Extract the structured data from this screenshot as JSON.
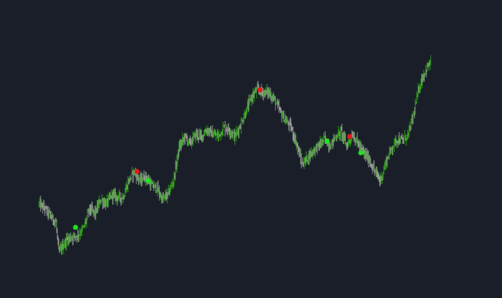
{
  "theme": {
    "background": "#1a1e29",
    "wick_color": "#9a9a9a",
    "bull_color": "#2e9e18",
    "bear_color": "#9a9a9a",
    "buy_signal_color": "#1ee81e",
    "sell_signal_color": "#e81818"
  },
  "chart_data": {
    "type": "line",
    "title": "",
    "xlabel": "",
    "ylabel": "",
    "grid": false,
    "legend": "none",
    "axes_visible": false,
    "xlim": [
      0,
      140
    ],
    "ylim": [
      0,
      100
    ],
    "series": [
      {
        "style": "price-bars",
        "x": [
          0,
          2,
          4,
          6,
          7,
          8,
          10,
          12,
          14,
          16,
          18,
          20,
          22,
          24,
          26,
          28,
          30,
          32,
          34,
          36,
          38,
          40,
          42,
          44,
          46,
          48,
          50,
          52,
          54,
          56,
          58,
          60,
          62,
          64,
          66,
          68,
          70,
          72,
          74,
          76,
          78,
          80,
          82,
          84,
          86,
          88,
          90,
          92,
          94,
          96,
          98,
          100,
          102,
          104,
          106,
          108,
          110,
          112,
          114,
          116,
          118,
          120,
          122,
          124,
          126,
          128,
          130,
          132,
          134,
          136,
          138,
          140
        ],
        "y": [
          31,
          29,
          26,
          23,
          10,
          12,
          16,
          17,
          18,
          21,
          29,
          27,
          33,
          31,
          35,
          34,
          34,
          41,
          45,
          41,
          43,
          39,
          38,
          33,
          35,
          41,
          55,
          60,
          57,
          61,
          60,
          63,
          61,
          60,
          64,
          63,
          60,
          65,
          71,
          77,
          80,
          79,
          79,
          76,
          71,
          67,
          64,
          57,
          48,
          51,
          54,
          56,
          59,
          56,
          60,
          62,
          56,
          61,
          57,
          53,
          50,
          45,
          41,
          49,
          55,
          59,
          58,
          61,
          70,
          82,
          88,
          92
        ]
      }
    ],
    "signals": [
      {
        "type": "buy",
        "x": 13,
        "y": 21
      },
      {
        "type": "sell",
        "x": 35,
        "y": 45
      },
      {
        "type": "buy",
        "x": 39,
        "y": 41
      },
      {
        "type": "sell",
        "x": 79,
        "y": 80
      },
      {
        "type": "buy",
        "x": 103,
        "y": 58
      },
      {
        "type": "sell",
        "x": 111,
        "y": 60
      },
      {
        "type": "buy",
        "x": 115,
        "y": 53
      }
    ]
  }
}
